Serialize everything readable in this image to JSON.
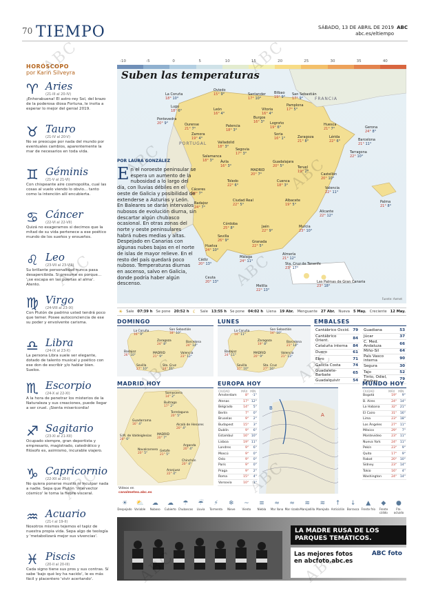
{
  "header": {
    "page": "70",
    "section": "TIEMPO",
    "date": "SÁBADO, 13 DE ABRIL DE 2019",
    "brand": "ABC",
    "web": "abc.es/eltiempo"
  },
  "watermark": "ABC",
  "horoscope": {
    "title": "HORÓSCOPO",
    "author": "por Karin Silveyra",
    "signs": [
      {
        "symbol": "♈",
        "name": "Aries",
        "dates": "(21-III al 20-IV)",
        "text": "¡Enhorabuena! El astro-rey Sol, del brazo de la poderosa diosa Fortuna, le invita a esperar lo mejor del genial 2019."
      },
      {
        "symbol": "♉",
        "name": "Tauro",
        "dates": "(21-IV al 20-V)",
        "text": "No se preocupe por nada del mundo por eventuales cambios, aparentemente la mar de necesarios en toda vida."
      },
      {
        "symbol": "♊",
        "name": "Géminis",
        "dates": "(21-V al 21-VI)",
        "text": "Con chispeante aire cosmopolita, cual las cosas al vuelo viendo lo obvio... tanto como la intención allí encubierta."
      },
      {
        "symbol": "♋",
        "name": "Cáncer",
        "dates": "(22-VI al 22-VII)",
        "text": "Quizá no exageramos si decimos que la mitad de su vida pertenece a ese poético mundo de los sueños y ensueños."
      },
      {
        "symbol": "♌",
        "name": "Leo",
        "dates": "(23-VII al 23-VIII)",
        "text": "Su brillante personalidad nunca pasa desapercibida. Si presume es porque... '¡se escapa en las puertas al alma'. Atento."
      },
      {
        "symbol": "♍",
        "name": "Virgo",
        "dates": "(24-VIII al 23-IX)",
        "text": "Con Plutón de padrino usted tendrá poco que temer. Posee autoconciencia de ese su poder y envolvente carisma."
      },
      {
        "symbol": "♎",
        "name": "Libra",
        "dates": "(24-IX al 23-X)",
        "text": "La persona Libra suele ser elegante, dotado de talento musical y poético con ese don de escribir y/o hablar bien. Suelos."
      },
      {
        "symbol": "♏",
        "name": "Escorpio",
        "dates": "(24-X al 22-XI)",
        "text": "A la hora de penetrar los misterios de la Naturaleza y sus creaciones, puede llegar a ser cruel. ¡Sienta misericordia!"
      },
      {
        "symbol": "♐",
        "name": "Sagitario",
        "dates": "(23-XI al 21-XII)",
        "text": "Ocupado siempre, gran deportista y empresario, magistrado, catedrático y filósofo es, asimismo, incurable viajero."
      },
      {
        "symbol": "♑",
        "name": "Capricornio",
        "dates": "(22-XII al 20-I)",
        "text": "No quiera ponerse mustio ni inculpar nada a nadie. Sepa que Plutón 'intervector cósmico' le toma la fiebre visceral."
      },
      {
        "symbol": "♒",
        "name": "Acuario",
        "dates": "(21-I al 19-II)",
        "text": "Nosotros mismos tejemos el tapiz de nuestra propia vida. Sepa algo de teología y 'metabolizará mejor sus vivencias'."
      },
      {
        "symbol": "♓",
        "name": "Piscis",
        "dates": "(20-II al 20-III)",
        "text": "Cada signo tiene sus pros y sus contras. Sí sabe 'bajo qué ley ha nacido', le es más fácil y placentero 'vivir acertando'."
      }
    ]
  },
  "scale": {
    "labels": [
      "-10",
      "-5",
      "0",
      "5",
      "10",
      "15",
      "20",
      "25",
      "30",
      "35",
      "40"
    ],
    "colors": [
      "#6f8fb8",
      "#8fb0cf",
      "#b3cfe2",
      "#cfe2e8",
      "#e3eccf",
      "#f3efb0",
      "#f7dc86",
      "#f3c06a",
      "#eda25a",
      "#e3834d",
      "#d8653f"
    ]
  },
  "map": {
    "title": "Suben las temperaturas",
    "france": "FRANCIA",
    "portugal": "PORTUGAL",
    "credit": "Fuente: Aemet",
    "cities": [
      [
        "La Coruña",
        "18°",
        "10°"
      ],
      [
        "Oviedo",
        "15°",
        "9°"
      ],
      [
        "Santander",
        "17°",
        "10°"
      ],
      [
        "Bilbao",
        "19°",
        "9°"
      ],
      [
        "San Sebastián",
        "17°",
        "9°"
      ],
      [
        "Lugo",
        "18°",
        "6°"
      ],
      [
        "León",
        "16°",
        "4°"
      ],
      [
        "Vitoria",
        "16°",
        "4°"
      ],
      [
        "Pamplona",
        "17°",
        "5°"
      ],
      [
        "Huesca",
        "21°",
        "7°"
      ],
      [
        "Pontevedra",
        "20°",
        "9°"
      ],
      [
        "Ourense",
        "21°",
        "7°"
      ],
      [
        "Palencia",
        "18°",
        "3°"
      ],
      [
        "Burgos",
        "16°",
        "3°"
      ],
      [
        "Logroño",
        "19°",
        "6°"
      ],
      [
        "Zaragoza",
        "21°",
        "8°"
      ],
      [
        "Lérida",
        "22°",
        "6°"
      ],
      [
        "Gerona",
        "24°",
        "8°"
      ],
      [
        "Barcelona",
        "21°",
        "11°"
      ],
      [
        "Tarragona",
        "22°",
        "10°"
      ],
      [
        "Zamora",
        "19°",
        "4°"
      ],
      [
        "Valladolid",
        "18°",
        "3°"
      ],
      [
        "Soria",
        "16°",
        "1°"
      ],
      [
        "Salamanca",
        "18°",
        "3°"
      ],
      [
        "Segovia",
        "17°",
        "3°"
      ],
      [
        "Ávila",
        "16°",
        "3°"
      ],
      [
        "MADRID",
        "20°",
        "7°"
      ],
      [
        "Guadalajara",
        "20°",
        "5°"
      ],
      [
        "Teruel",
        "19°",
        "2°"
      ],
      [
        "Castellón",
        "20°",
        "10°"
      ],
      [
        "Cáceres",
        "22°",
        "7°"
      ],
      [
        "Toledo",
        "22°",
        "6°"
      ],
      [
        "Cuenca",
        "18°",
        "3°"
      ],
      [
        "Valencia",
        "22°",
        "11°"
      ],
      [
        "Palma",
        "21°",
        "8°"
      ],
      [
        "Badajoz",
        "24°",
        "7°"
      ],
      [
        "Ciudad Real",
        "22°",
        "5°"
      ],
      [
        "Albacete",
        "19°",
        "5°"
      ],
      [
        "Alicante",
        "22°",
        "12°"
      ],
      [
        "Córdoba",
        "25°",
        "8°"
      ],
      [
        "Jaén",
        "22°",
        "9°"
      ],
      [
        "Murcia",
        "23°",
        "10°"
      ],
      [
        "Huelva",
        "24°",
        "10°"
      ],
      [
        "Sevilla",
        "26°",
        "9°"
      ],
      [
        "Granada",
        "22°",
        "5°"
      ],
      [
        "Almería",
        "21°",
        "12°"
      ],
      [
        "Cádiz",
        "20°",
        "13°"
      ],
      [
        "Málaga",
        "24°",
        "11°"
      ],
      [
        "Ceuta",
        "20°",
        "13°"
      ],
      [
        "Melilla",
        "22°",
        "13°"
      ],
      [
        "Sta. Cruz de Tenerife",
        "23°",
        "17°"
      ],
      [
        "Las Palmas de Gran Canaria",
        "23°",
        "18°"
      ]
    ]
  },
  "article": {
    "byline": "POR LAURA GONZÁLEZ",
    "drop": "E",
    "text": "n el noroeste peninsular se espera un aumento de la nubosidad a lo largo del día, con lluvias débiles en el oeste de Galicia y posibilidad de extenderse a Asturias y León. En Baleares se darán intervalos nubosos de evolución diurna, sin descartar algún chubasco ocasional. En otras zonas del norte y oeste peninsulares habrá nubes medias y altas. Despejado en Canarias con algunas nubes bajas en el norte de islas de mayor relieve. En el resto del país quedará poco nuboso. Temperaturas diurnas en ascenso, salvo en Galicia, donde podría haber algún descenso."
  },
  "sunbar": {
    "sunrise_label": "Sale",
    "sunrise": "07:39 h",
    "sunset_label": "Se pone",
    "sunset": "20:52 h",
    "moonrise_label": "Sale",
    "moonrise": "13:55 h",
    "moonset_label": "Se pone",
    "moonset": "04:02 h",
    "llena_label": "Llena",
    "llena": "19 Abr.",
    "menguante_label": "Menguante",
    "menguante": "27 Abr.",
    "nueva_label": "Nueva",
    "nueva": "5 May.",
    "creciente_label": "Creciente",
    "creciente": "12 May."
  },
  "domingo": {
    "title": "DOMINGO",
    "cities": [
      [
        "La Coruña",
        "16°",
        "9°"
      ],
      [
        "San Sebastián",
        "18°",
        "10°"
      ],
      [
        "Zaragoza",
        "24°",
        "8°"
      ],
      [
        "Barcelona",
        "24°",
        "14°"
      ],
      [
        "Badajoz",
        "26°",
        "10°"
      ],
      [
        "MADRID",
        "21°",
        "9°"
      ],
      [
        "Valencia",
        "23°",
        "12°"
      ],
      [
        "Sevilla",
        "27°",
        "10°"
      ],
      [
        "Sta. Cruz",
        "24°",
        "16°"
      ]
    ]
  },
  "lunes": {
    "title": "LUNES",
    "cities": [
      [
        "La Coruña",
        "14°",
        "11°"
      ],
      [
        "San Sebastián",
        "14°",
        "10°"
      ],
      [
        "Zaragoza",
        "19°",
        "8°"
      ],
      [
        "Barcelona",
        "21°",
        "14°"
      ],
      [
        "Badajoz",
        "24°",
        "11°"
      ],
      [
        "MADRID",
        "20°",
        "9°"
      ],
      [
        "Valencia",
        "21°",
        "13°"
      ],
      [
        "Sevilla",
        "27°",
        "10°"
      ],
      [
        "Sta. Cruz",
        "27°",
        "16°"
      ]
    ]
  },
  "embalses": {
    "title": "EMBALSES",
    "left": [
      [
        "Cantábrico Occid.",
        "79"
      ],
      [
        "Cantábrico Orient.",
        "84"
      ],
      [
        "Cataluña interna",
        "84"
      ],
      [
        "Duero",
        "61"
      ],
      [
        "Ebro",
        "71"
      ],
      [
        "Galicia Costa",
        "74"
      ],
      [
        "Guadalete-Barbate",
        "65"
      ],
      [
        "Guadalquivir",
        "54"
      ]
    ],
    "right": [
      [
        "Guadiana",
        "53"
      ],
      [
        "Júcar",
        "37"
      ],
      [
        "C. Med. Andaluza",
        "66"
      ],
      [
        "Miño-Sil",
        "64"
      ],
      [
        "País Vasco interna",
        "90"
      ],
      [
        "Segura",
        "30"
      ],
      [
        "Tajo",
        "52"
      ],
      [
        "Tinto, Odiel, Piedras",
        "79"
      ]
    ]
  },
  "madrid": {
    "title": "MADRID HOY",
    "cities": [
      [
        "Somosierra",
        "14°",
        "2°"
      ],
      [
        "Buitrago",
        "17°",
        "2°"
      ],
      [
        "Torrelaguna",
        "20°",
        "5°"
      ],
      [
        "Guadarrama",
        "16°",
        "4°"
      ],
      [
        "Alcalá de Henares",
        "20°",
        "4°"
      ],
      [
        "S.M. de Valdeiglesias",
        "20°",
        "6°"
      ],
      [
        "MADRID",
        "20°",
        "7°"
      ],
      [
        "Navalcarnero",
        "20°",
        "5°"
      ],
      [
        "Getafe",
        "21°",
        "5°"
      ],
      [
        "Arganda",
        "20°",
        "4°"
      ],
      [
        "Chinchón",
        "20°",
        "4°"
      ],
      [
        "Aranjuez",
        "22°",
        "4°"
      ]
    ],
    "credit": "Vídeos en",
    "credit_link": "canalmeteo.abc.es"
  },
  "europa": {
    "title": "EUROPA HOY",
    "headers": [
      "CIUDAD",
      "MÁX",
      "MÍN"
    ],
    "rows": [
      [
        "Ámsterdam",
        "8°",
        "-1°"
      ],
      [
        "Atenas",
        "17°",
        "12°"
      ],
      [
        "Belgrado",
        "14°",
        "5°"
      ],
      [
        "Berlín",
        "7°",
        "0°"
      ],
      [
        "Bruselas",
        "9°",
        "2°"
      ],
      [
        "Budapest",
        "15°",
        "3°"
      ],
      [
        "Dublín",
        "9°",
        "6°"
      ],
      [
        "Estambul",
        "16°",
        "10°"
      ],
      [
        "Lisboa",
        "19°",
        "11°"
      ],
      [
        "Londres",
        "9°",
        "6°"
      ],
      [
        "Moscú",
        "9°",
        "0°"
      ],
      [
        "Oslo",
        "9°",
        "0°"
      ],
      [
        "París",
        "9°",
        "0°"
      ],
      [
        "Praga",
        "9°",
        "2°"
      ],
      [
        "Roma",
        "15°",
        "4°"
      ],
      [
        "Varsovia",
        "10°",
        "1°"
      ]
    ]
  },
  "mundo": {
    "title": "MUNDO HOY",
    "headers": [
      "CIUDAD",
      "MÁX",
      "MÍN"
    ],
    "rows": [
      [
        "Bogotá",
        "19°",
        "9°"
      ],
      [
        "B. Aires",
        "24°",
        "14°"
      ],
      [
        "La Habana",
        "32°",
        "21°"
      ],
      [
        "El Cairo",
        "31°",
        "16°"
      ],
      [
        "Lima",
        "23°",
        "18°"
      ],
      [
        "Los Ángeles",
        "27°",
        "11°"
      ],
      [
        "México",
        "29°",
        "7°"
      ],
      [
        "Montevideo",
        "23°",
        "11°"
      ],
      [
        "Nueva York",
        "24°",
        "11°"
      ],
      [
        "Pekín",
        "23°",
        "9°"
      ],
      [
        "Quito",
        "17°",
        "9°"
      ],
      [
        "Rabat",
        "20°",
        "10°"
      ],
      [
        "Sídney",
        "23°",
        "14°"
      ],
      [
        "Tokio",
        "16°",
        "4°"
      ],
      [
        "Washington",
        "24°",
        "14°"
      ]
    ]
  },
  "legend": [
    [
      "☀",
      "Despejado"
    ],
    [
      "⛅",
      "Variable"
    ],
    [
      "☁",
      "Nuboso"
    ],
    [
      "☁",
      "Cubierto"
    ],
    [
      "☂",
      "Chubascos"
    ],
    [
      "☔",
      "Lluvia"
    ],
    [
      "⚡",
      "Tormenta"
    ],
    [
      "❄",
      "Nieve"
    ],
    [
      "~",
      "Viento"
    ],
    [
      "≡",
      "Niebla"
    ],
    [
      "≈",
      "Mar llana"
    ],
    [
      "≈",
      "Mar rizada"
    ],
    [
      "≋",
      "Marejadilla"
    ],
    [
      "≋",
      "Marejada"
    ],
    [
      "↑",
      "Anticiclón"
    ],
    [
      "↓",
      "Borrasca"
    ],
    [
      "▲",
      "Frente frío"
    ],
    [
      "◆",
      "Frente cálido"
    ],
    [
      "●",
      "Fte. ocluido"
    ]
  ],
  "ad": {
    "headline": "LA MADRE RUSA DE LOS PARQUES TEMÁTICOS.",
    "line1": "Las mejores fotos",
    "line2": "en abcfoto.abc.es",
    "logo": "ABC foto"
  }
}
